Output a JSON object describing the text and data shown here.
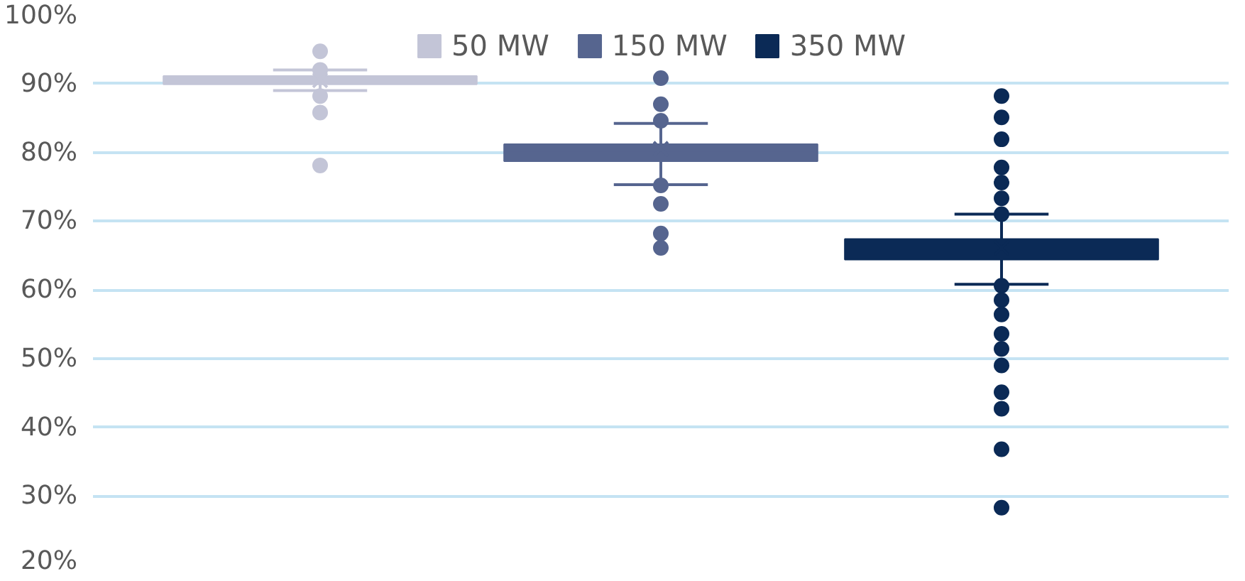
{
  "chart_data": {
    "type": "box",
    "categories": [
      null
    ],
    "series": [
      {
        "name": "50 MW",
        "color": "#c3c5d7",
        "boxes": [
          {
            "low": 89,
            "q1": 89.9,
            "median": 90.5,
            "q3": 91.1,
            "high": 92,
            "mean": 90.5,
            "outliers": [
              94.7,
              92,
              88.2,
              85.8,
              78.1
            ]
          }
        ]
      },
      {
        "name": "150 MW",
        "color": "#56658f",
        "boxes": [
          {
            "low": 75.3,
            "q1": 78.7,
            "median": 80,
            "q3": 81.2,
            "high": 84.2,
            "mean": 80.5,
            "outliers": [
              90.8,
              87,
              84.6,
              75.2,
              72.5,
              68.2,
              66.1
            ]
          }
        ]
      },
      {
        "name": "350 MW",
        "color": "#0b2a56",
        "boxes": [
          {
            "low": 60.8,
            "q1": 64.4,
            "median": 66,
            "q3": 67.4,
            "high": 71,
            "mean": 66.1,
            "outliers": [
              88.2,
              85.1,
              81.9,
              77.8,
              75.6,
              73.3,
              71,
              60.6,
              58.5,
              56.4,
              53.6,
              51.4,
              49,
              45.1,
              42.7,
              36.8,
              28.3
            ]
          }
        ]
      }
    ],
    "ylim": [
      20,
      100
    ],
    "yticks": [
      {
        "value": 20,
        "label": "20%"
      },
      {
        "value": 30,
        "label": "30%"
      },
      {
        "value": 40,
        "label": "40%"
      },
      {
        "value": 50,
        "label": "50%"
      },
      {
        "value": 60,
        "label": "60%"
      },
      {
        "value": 70,
        "label": "70%"
      },
      {
        "value": 80,
        "label": "80%"
      },
      {
        "value": 90,
        "label": "90%"
      },
      {
        "value": 100,
        "label": "100%"
      }
    ],
    "grid": "y",
    "legend": "top",
    "marker": "circle",
    "tick_labels": "y"
  }
}
